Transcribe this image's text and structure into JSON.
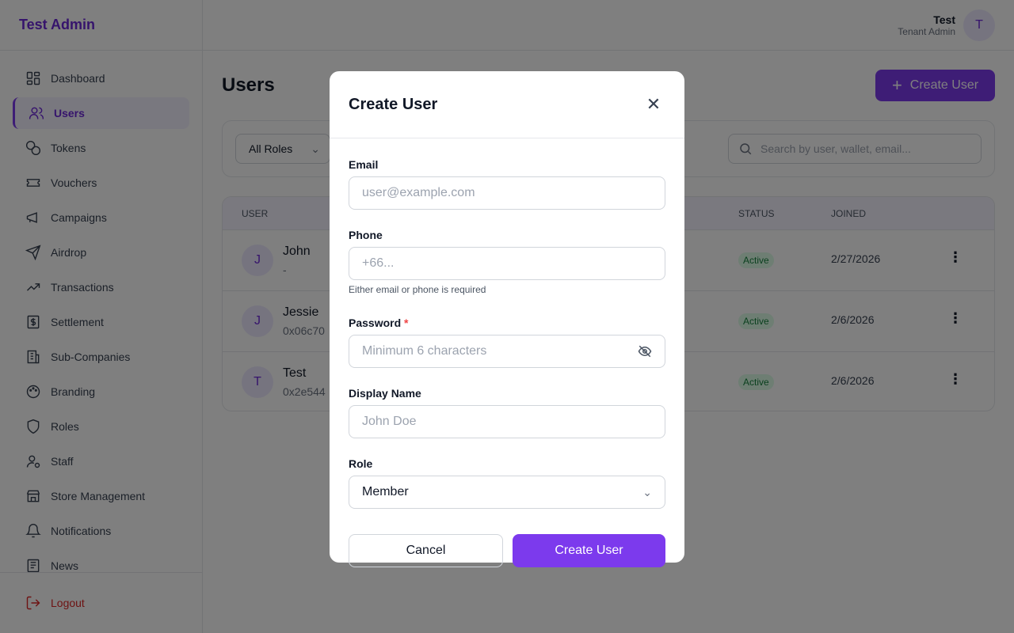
{
  "brand": "Test Admin",
  "sidebar": {
    "items": [
      {
        "label": "Dashboard",
        "icon": "dashboard-icon"
      },
      {
        "label": "Users",
        "icon": "users-icon",
        "active": true
      },
      {
        "label": "Tokens",
        "icon": "coins-icon"
      },
      {
        "label": "Vouchers",
        "icon": "ticket-icon"
      },
      {
        "label": "Campaigns",
        "icon": "megaphone-icon"
      },
      {
        "label": "Airdrop",
        "icon": "send-icon"
      },
      {
        "label": "Transactions",
        "icon": "trending-up-icon"
      },
      {
        "label": "Settlement",
        "icon": "dollar-receipt-icon"
      },
      {
        "label": "Sub-Companies",
        "icon": "building-icon"
      },
      {
        "label": "Branding",
        "icon": "palette-icon"
      },
      {
        "label": "Roles",
        "icon": "shield-icon"
      },
      {
        "label": "Staff",
        "icon": "user-cog-icon"
      },
      {
        "label": "Store Management",
        "icon": "store-icon"
      },
      {
        "label": "Notifications",
        "icon": "bell-icon"
      },
      {
        "label": "News",
        "icon": "newspaper-icon"
      }
    ],
    "logout": "Logout"
  },
  "header": {
    "user_name": "Test",
    "user_role": "Tenant Admin",
    "avatar": "T"
  },
  "main": {
    "title": "Users",
    "create_button": "Create User",
    "role_filter": "All Roles",
    "search_placeholder": "Search by user, wallet, email...",
    "columns": {
      "user": "USER",
      "status": "STATUS",
      "joined": "JOINED"
    },
    "rows": [
      {
        "avatar": "J",
        "name": "John",
        "sub": "-",
        "status": "Active",
        "joined": "2/27/2026"
      },
      {
        "avatar": "J",
        "name": "Jessie",
        "sub": "0x06c70",
        "status": "Active",
        "joined": "2/6/2026"
      },
      {
        "avatar": "T",
        "name": "Test",
        "sub": "0x2e544",
        "status": "Active",
        "joined": "2/6/2026"
      }
    ]
  },
  "modal": {
    "title": "Create User",
    "email_label": "Email",
    "email_placeholder": "user@example.com",
    "phone_label": "Phone",
    "phone_placeholder": "+66...",
    "phone_hint": "Either email or phone is required",
    "password_label": "Password",
    "password_required": "*",
    "password_placeholder": "Minimum 6 characters",
    "display_name_label": "Display Name",
    "display_name_placeholder": "John Doe",
    "role_label": "Role",
    "role_value": "Member",
    "cancel": "Cancel",
    "submit": "Create User"
  },
  "colors": {
    "accent": "#7c3aed",
    "danger": "#dc2626",
    "success": "#15803d"
  }
}
